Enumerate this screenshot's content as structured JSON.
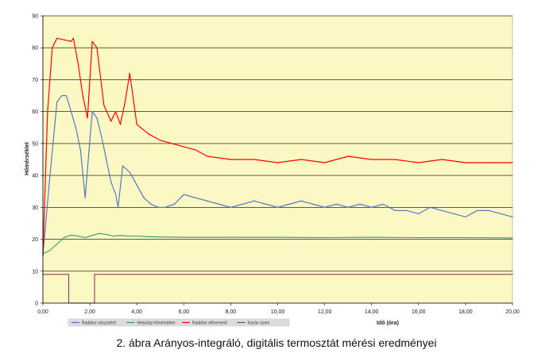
{
  "caption": "2. ábra Arányos-integráló, digitális termosztát mérési eredményei",
  "colors": {
    "plot_background": "#fbf8c4",
    "legend_background": "#dcdcdc",
    "gridline": "#000000"
  },
  "chart_data": {
    "type": "line",
    "xlabel": "Idő (óra)",
    "ylabel": "Hőmérséklet",
    "xlim": [
      0,
      20
    ],
    "ylim": [
      0,
      90
    ],
    "x_ticks": [
      "0,00",
      "2,00",
      "4,00",
      "6,00",
      "8,00",
      "10,00",
      "12,00",
      "14,00",
      "16,00",
      "18,00",
      "20,00"
    ],
    "y_ticks": [
      "0",
      "10",
      "20",
      "30",
      "40",
      "50",
      "60",
      "70",
      "80",
      "90"
    ],
    "grid": "horizontal",
    "legend_position": "bottom-left",
    "series": [
      {
        "name": "Radiátor visszatérő",
        "color": "#4472c4",
        "x": [
          0,
          0.3,
          0.6,
          0.8,
          1.0,
          1.2,
          1.4,
          1.6,
          1.8,
          1.9,
          2.1,
          2.3,
          2.5,
          2.7,
          2.9,
          3.1,
          3.2,
          3.4,
          3.7,
          4.0,
          4.3,
          4.6,
          4.9,
          5.2,
          5.6,
          6.0,
          6.5,
          7.0,
          7.5,
          8.0,
          8.5,
          9.0,
          9.5,
          10.0,
          10.5,
          11.0,
          11.5,
          12.0,
          12.5,
          13.0,
          13.5,
          14.0,
          14.5,
          15.0,
          15.5,
          16.0,
          16.5,
          17.0,
          17.5,
          18.0,
          18.5,
          19.0,
          19.5,
          20.0
        ],
        "values": [
          15,
          40,
          63,
          65,
          65,
          60,
          55,
          48,
          33,
          42,
          60,
          58,
          52,
          45,
          38,
          34,
          30,
          43,
          41,
          37,
          33,
          31,
          30,
          30,
          31,
          34,
          33,
          32,
          31,
          30,
          31,
          32,
          31,
          30,
          31,
          32,
          31,
          30,
          31,
          30,
          31,
          30,
          31,
          29,
          29,
          28,
          30,
          29,
          28,
          27,
          29,
          29,
          28,
          27
        ]
      },
      {
        "name": "Helyiség hőmérséklet",
        "color": "#339966",
        "x": [
          0,
          0.3,
          0.6,
          0.9,
          1.2,
          1.5,
          1.8,
          2.1,
          2.4,
          2.7,
          3.0,
          3.3,
          3.6,
          4.0,
          4.5,
          5.0,
          6.0,
          8.0,
          10.0,
          12.0,
          14.0,
          16.0,
          18.0,
          20.0
        ],
        "values": [
          15.5,
          16.5,
          18.5,
          20.5,
          21.3,
          21,
          20.5,
          21.2,
          21.8,
          21.5,
          21,
          21.2,
          21,
          21,
          20.8,
          20.7,
          20.6,
          20.6,
          20.6,
          20.5,
          20.6,
          20.5,
          20.5,
          20.4
        ]
      },
      {
        "name": "Radiátor előremenő",
        "color": "#ff0000",
        "x": [
          0,
          0.2,
          0.4,
          0.6,
          1.2,
          1.3,
          1.5,
          1.7,
          1.9,
          2.1,
          2.3,
          2.6,
          2.9,
          3.1,
          3.3,
          3.5,
          3.7,
          4.0,
          4.5,
          5.0,
          5.5,
          6.0,
          6.5,
          7.0,
          8.0,
          9.0,
          10.0,
          11.0,
          12.0,
          13.0,
          14.0,
          15.0,
          16.0,
          17.0,
          18.0,
          19.0,
          20.0
        ],
        "values": [
          15,
          60,
          80,
          83,
          82,
          83,
          75,
          65,
          58,
          82,
          80,
          62,
          57,
          60,
          56,
          63,
          72,
          56,
          53,
          51,
          50,
          49,
          48,
          46,
          45,
          45,
          44,
          45,
          44,
          46,
          45,
          45,
          44,
          45,
          44,
          44,
          44
        ]
      },
      {
        "name": "Kazán üzem",
        "color": "#993366",
        "x": [
          0,
          1.1,
          1.1,
          2.2,
          2.2,
          20
        ],
        "values": [
          9,
          9,
          0,
          0,
          9,
          9
        ]
      }
    ]
  }
}
